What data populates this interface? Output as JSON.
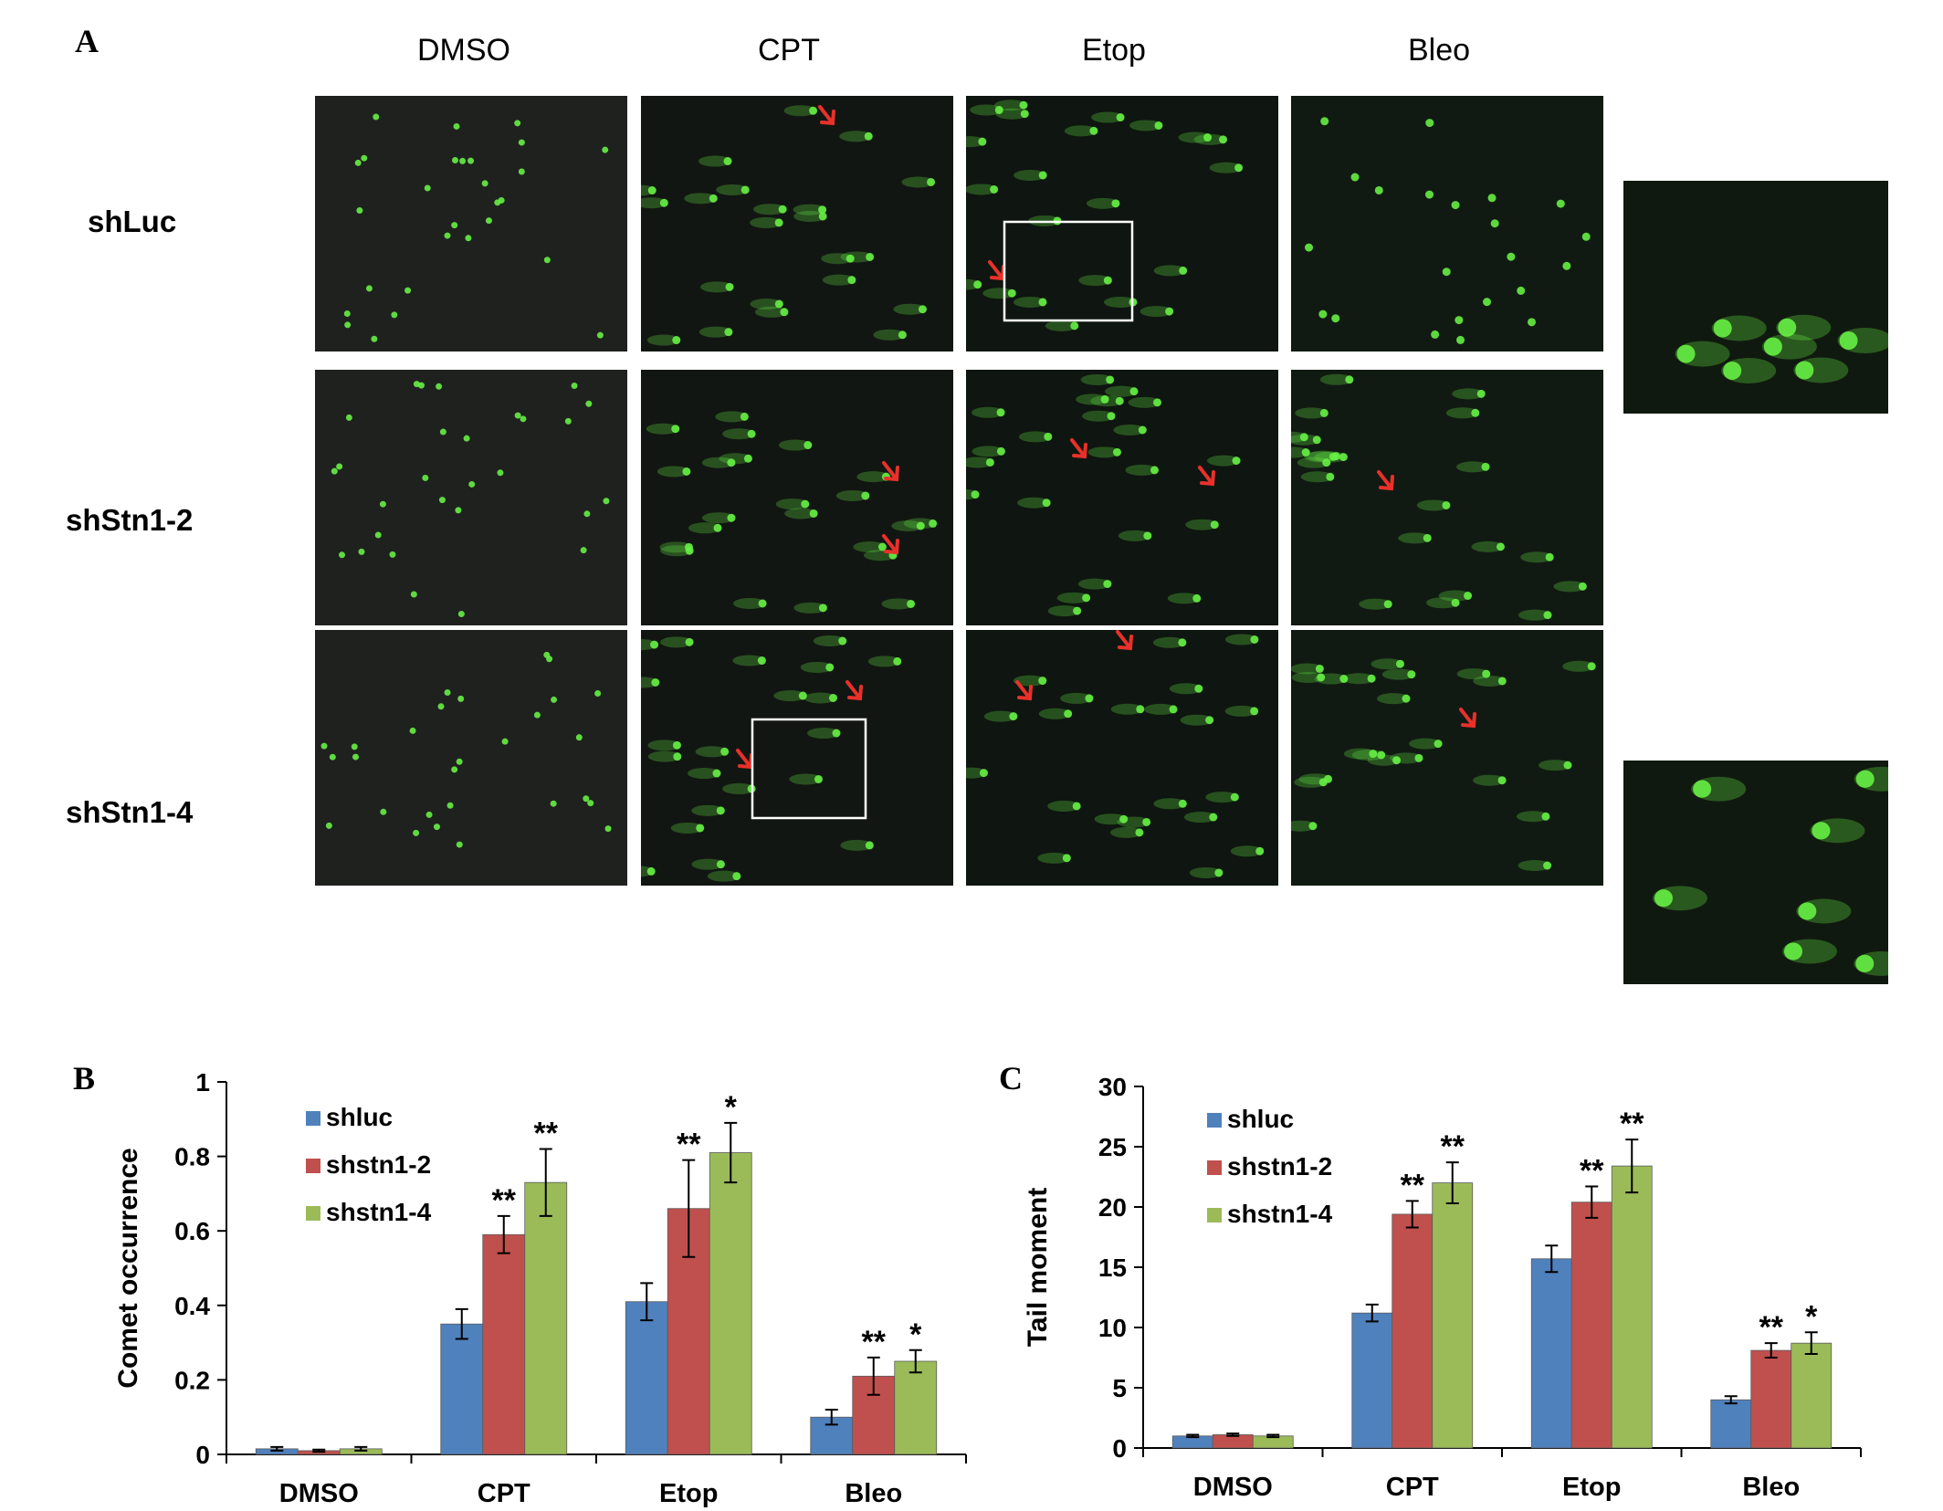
{
  "panel_a": {
    "letter": "A",
    "columns": [
      "DMSO",
      "CPT",
      "Etop",
      "Bleo"
    ],
    "rows": [
      "shLuc",
      "shStn1-2",
      "shStn1-4"
    ]
  },
  "panel_b": {
    "letter": "B"
  },
  "panel_c": {
    "letter": "C"
  },
  "colors": {
    "shluc": "#4f81bd",
    "shstn1_2": "#c0504d",
    "shstn1_4": "#9bbb59",
    "arrow": "#e8312a",
    "comet": "#66ee44"
  },
  "chart_data": [
    {
      "type": "bar",
      "panel": "B",
      "categories": [
        "DMSO",
        "CPT",
        "Etop",
        "Bleo"
      ],
      "ylabel": "Comet  occurrence",
      "xlabel": "",
      "ylim": [
        0,
        1
      ],
      "yticks": [
        "0",
        "0.2",
        "0.4",
        "0.6",
        "0.8",
        "1"
      ],
      "legend_position": "top-left",
      "series": [
        {
          "name": "shluc",
          "values": [
            0.015,
            0.35,
            0.41,
            0.1
          ],
          "errors": [
            0.005,
            0.04,
            0.05,
            0.02
          ],
          "stars": [
            "",
            "",
            "",
            ""
          ]
        },
        {
          "name": "shstn1-2",
          "values": [
            0.01,
            0.59,
            0.66,
            0.21
          ],
          "errors": [
            0.003,
            0.05,
            0.13,
            0.05
          ],
          "stars": [
            "",
            "**",
            "**",
            "**"
          ]
        },
        {
          "name": "shstn1-4",
          "values": [
            0.015,
            0.73,
            0.81,
            0.25
          ],
          "errors": [
            0.005,
            0.09,
            0.08,
            0.03
          ],
          "stars": [
            "",
            "**",
            "*",
            "*"
          ]
        }
      ]
    },
    {
      "type": "bar",
      "panel": "C",
      "categories": [
        "DMSO",
        "CPT",
        "Etop",
        "Bleo"
      ],
      "ylabel": "Tail  moment",
      "xlabel": "",
      "ylim": [
        0,
        30
      ],
      "yticks": [
        "0",
        "5",
        "10",
        "15",
        "20",
        "25",
        "30"
      ],
      "legend_position": "top-left",
      "series": [
        {
          "name": "shluc",
          "values": [
            1.0,
            11.2,
            15.7,
            4.0
          ],
          "errors": [
            0.1,
            0.7,
            1.1,
            0.3
          ],
          "stars": [
            "",
            "",
            "",
            ""
          ]
        },
        {
          "name": "shstn1-2",
          "values": [
            1.1,
            19.4,
            20.4,
            8.1
          ],
          "errors": [
            0.1,
            1.1,
            1.3,
            0.6
          ],
          "stars": [
            "",
            "**",
            "**",
            "**"
          ]
        },
        {
          "name": "shstn1-4",
          "values": [
            1.0,
            22.0,
            23.4,
            8.7
          ],
          "errors": [
            0.1,
            1.7,
            2.2,
            0.9
          ],
          "stars": [
            "",
            "**",
            "**",
            "*"
          ]
        }
      ]
    }
  ]
}
